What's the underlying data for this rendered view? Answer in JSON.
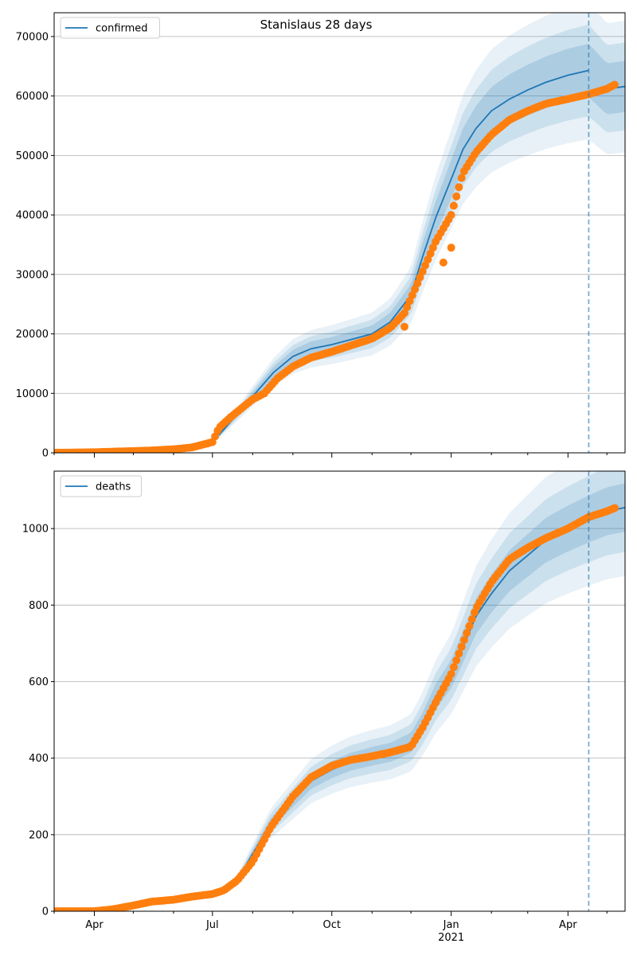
{
  "figure": {
    "title": "Stanislaus 28 days"
  },
  "chart_data": [
    {
      "type": "line",
      "panel": "top",
      "legend": {
        "label": "confirmed",
        "placement": "upper-left"
      },
      "ylim": [
        0,
        74000
      ],
      "yticks": [
        0,
        10000,
        20000,
        30000,
        40000,
        50000,
        60000,
        70000
      ],
      "xlim": [
        "2020-03-01",
        "2021-05-15"
      ],
      "grid": "horizontal",
      "vline_date": "2021-04-17",
      "model": {
        "x": [
          "2020-07-06",
          "2020-07-20",
          "2020-08-03",
          "2020-08-17",
          "2020-09-01",
          "2020-09-15",
          "2020-10-01",
          "2020-10-15",
          "2020-11-01",
          "2020-11-15",
          "2020-12-01",
          "2020-12-10",
          "2020-12-20",
          "2021-01-01",
          "2021-01-10",
          "2021-01-20",
          "2021-02-01",
          "2021-02-15",
          "2021-03-01",
          "2021-03-15",
          "2021-04-01",
          "2021-04-17"
        ],
        "y": [
          3000,
          6500,
          10000,
          13500,
          16200,
          17500,
          18200,
          19000,
          20000,
          22000,
          26500,
          33000,
          39500,
          46000,
          51000,
          54500,
          57500,
          59500,
          61000,
          62300,
          63500,
          64300
        ]
      },
      "model_tail": {
        "x": [
          "2021-04-17",
          "2021-05-01",
          "2021-05-15"
        ],
        "y": [
          60300,
          61200,
          61600
        ]
      },
      "bands_rel": [
        0.07,
        0.12,
        0.18
      ],
      "observed": {
        "x": [
          "2020-03-01",
          "2020-03-15",
          "2020-04-01",
          "2020-04-15",
          "2020-05-01",
          "2020-05-15",
          "2020-06-01",
          "2020-06-15",
          "2020-07-01",
          "2020-07-06",
          "2020-07-15",
          "2020-08-01",
          "2020-08-10",
          "2020-08-20",
          "2020-09-01",
          "2020-09-15",
          "2020-10-01",
          "2020-10-15",
          "2020-11-01",
          "2020-11-15",
          "2020-11-26",
          "2020-12-01",
          "2020-12-10",
          "2020-12-20",
          "2021-01-01",
          "2021-01-10",
          "2021-01-20",
          "2021-02-01",
          "2021-02-15",
          "2021-03-01",
          "2021-03-15",
          "2021-04-01",
          "2021-04-17",
          "2021-05-01",
          "2021-05-08"
        ],
        "y": [
          0,
          50,
          100,
          200,
          300,
          400,
          600,
          900,
          1800,
          4200,
          6000,
          9000,
          10000,
          12500,
          14500,
          16000,
          17000,
          18000,
          19200,
          21000,
          23500,
          26000,
          30500,
          35500,
          40000,
          47000,
          50500,
          53500,
          56000,
          57500,
          58700,
          59500,
          60300,
          61200,
          62000
        ]
      },
      "outliers": {
        "x": [
          "2020-11-26",
          "2020-12-26",
          "2021-01-01"
        ],
        "y": [
          21200,
          32000,
          34500
        ]
      }
    },
    {
      "type": "line",
      "panel": "bottom",
      "legend": {
        "label": "deaths",
        "placement": "upper-left"
      },
      "ylim": [
        0,
        1150
      ],
      "yticks": [
        0,
        200,
        400,
        600,
        800,
        1000
      ],
      "xlim": [
        "2020-03-01",
        "2021-05-15"
      ],
      "xticks": [
        "2020-04-01",
        "2020-07-01",
        "2020-10-01",
        "2021-01-01",
        "2021-04-01"
      ],
      "xticklabels": [
        "Apr",
        "Jul",
        "Oct",
        "Jan",
        "Apr"
      ],
      "xtick_sublabel": "2021",
      "grid": "horizontal",
      "vline_date": "2021-04-17",
      "model": {
        "x": [
          "2020-07-06",
          "2020-07-20",
          "2020-08-01",
          "2020-08-15",
          "2020-09-01",
          "2020-09-15",
          "2020-10-01",
          "2020-10-15",
          "2020-11-01",
          "2020-11-15",
          "2020-12-01",
          "2020-12-10",
          "2020-12-20",
          "2021-01-01",
          "2021-01-10",
          "2021-01-20",
          "2021-02-01",
          "2021-02-15",
          "2021-03-01",
          "2021-03-15",
          "2021-04-01",
          "2021-04-17"
        ],
        "y": [
          50,
          80,
          150,
          230,
          290,
          340,
          370,
          390,
          405,
          415,
          440,
          490,
          560,
          620,
          690,
          770,
          830,
          890,
          930,
          970,
          1000,
          1025
        ]
      },
      "model_tail": {
        "x": [
          "2021-04-17",
          "2021-05-01",
          "2021-05-15"
        ],
        "y": [
          1025,
          1045,
          1055
        ]
      },
      "bands_rel": [
        0.06,
        0.11,
        0.17
      ],
      "observed": {
        "x": [
          "2020-03-01",
          "2020-03-15",
          "2020-04-01",
          "2020-04-15",
          "2020-05-01",
          "2020-05-15",
          "2020-06-01",
          "2020-06-15",
          "2020-07-01",
          "2020-07-10",
          "2020-07-20",
          "2020-08-01",
          "2020-08-15",
          "2020-09-01",
          "2020-09-15",
          "2020-10-01",
          "2020-10-15",
          "2020-11-01",
          "2020-11-15",
          "2020-12-01",
          "2020-12-10",
          "2020-12-20",
          "2021-01-01",
          "2021-01-10",
          "2021-01-20",
          "2021-02-01",
          "2021-02-15",
          "2021-03-01",
          "2021-03-15",
          "2021-04-01",
          "2021-04-17",
          "2021-05-01",
          "2021-05-08"
        ],
        "y": [
          0,
          0,
          0,
          5,
          15,
          25,
          30,
          38,
          45,
          55,
          80,
          130,
          220,
          300,
          350,
          380,
          395,
          405,
          415,
          430,
          480,
          545,
          620,
          700,
          790,
          860,
          920,
          950,
          975,
          1000,
          1030,
          1045,
          1055
        ]
      }
    }
  ]
}
